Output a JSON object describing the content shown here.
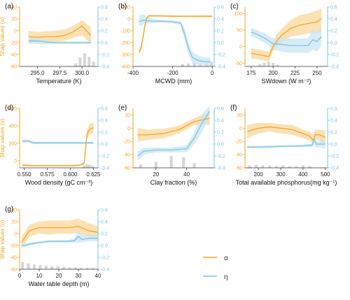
{
  "colors": {
    "alpha": "#F2A62A",
    "alpha_band": "#F9D79B",
    "eta": "#7DC4E3",
    "eta_band": "#C9E6F3",
    "hist": "#D6D6D6",
    "axis": "#333333"
  },
  "legend": {
    "alpha_label": "α",
    "eta_label": "η"
  },
  "chart_data": [
    {
      "panel": "(a)",
      "type": "line",
      "xlabel": "Temperature (K)",
      "ylabel_left": "Shap values (α)",
      "ylabel_right": "",
      "xlim": [
        293,
        301.8
      ],
      "xticks": [
        295.0,
        297.5,
        300.0
      ],
      "xtick_labels": [
        "295.0",
        "297.5",
        "300.0"
      ],
      "xtick_dec": 1,
      "ylim_left": [
        -60,
        40
      ],
      "yticks_left": [
        -60,
        -40,
        -20,
        0,
        20,
        40
      ],
      "ylim_right": [
        -0.4,
        0.6
      ],
      "yticks_right": [
        -0.4,
        -0.2,
        0.0,
        0.2,
        0.4,
        0.6
      ],
      "alpha": {
        "x": [
          294,
          295,
          296,
          297,
          298,
          299,
          300,
          301
        ],
        "y": [
          -10,
          -11,
          -10,
          -10,
          -8,
          -2,
          8,
          -8
        ],
        "lo": [
          -20,
          -20,
          -19,
          -19,
          -17,
          -12,
          -8,
          -22
        ],
        "hi": [
          0,
          -2,
          -1,
          0,
          2,
          8,
          18,
          6
        ]
      },
      "eta": {
        "x": [
          294,
          295,
          296,
          297,
          298,
          299,
          300,
          301
        ],
        "y": [
          0.03,
          0.03,
          0.01,
          0.0,
          0.0,
          0.0,
          0.0,
          0.0
        ],
        "lo": [
          -0.02,
          -0.02,
          -0.03,
          -0.02,
          -0.02,
          -0.02,
          -0.02,
          -0.02
        ],
        "hi": [
          0.08,
          0.08,
          0.05,
          0.02,
          0.02,
          0.02,
          0.02,
          0.02
        ]
      },
      "hist": {
        "x": [
          299.3,
          299.8,
          300.3,
          300.8,
          301.3
        ],
        "h": [
          0.05,
          0.15,
          0.22,
          0.16,
          0.08
        ]
      }
    },
    {
      "panel": "(b)",
      "type": "line",
      "xlabel": "MCWD (mm)",
      "ylabel_left": "",
      "ylabel_right": "",
      "xlim": [
        -400,
        10
      ],
      "xticks": [
        -400,
        -200,
        0
      ],
      "xtick_labels": [
        "-400",
        "-200",
        "0"
      ],
      "xtick_dec": 0,
      "ylim_left": [
        -400,
        100
      ],
      "yticks_left": [
        -400,
        -300,
        -200,
        -100,
        0,
        100
      ],
      "ylim_right": [
        -0.4,
        0.6
      ],
      "yticks_right": [
        -0.4,
        -0.2,
        0.0,
        0.2,
        0.4,
        0.6
      ],
      "alpha": {
        "x": [
          -370,
          -360,
          -350,
          -340,
          -330,
          -320,
          -300,
          -250,
          -200,
          -100,
          0
        ],
        "y": [
          -280,
          -250,
          -160,
          -60,
          10,
          25,
          25,
          25,
          22,
          22,
          22
        ],
        "lo": [
          -310,
          -270,
          -190,
          -90,
          0,
          15,
          18,
          18,
          15,
          15,
          12
        ],
        "hi": [
          -250,
          -220,
          -130,
          -30,
          20,
          35,
          32,
          32,
          30,
          30,
          32
        ]
      },
      "eta": {
        "x": [
          -370,
          -350,
          -330,
          -300,
          -250,
          -200,
          -160,
          -140,
          -120,
          -100,
          -70,
          -40,
          -10
        ],
        "y": [
          0.35,
          0.38,
          0.37,
          0.36,
          0.36,
          0.35,
          0.33,
          0.15,
          -0.1,
          -0.25,
          -0.3,
          -0.32,
          -0.32
        ],
        "lo": [
          0.28,
          0.3,
          0.32,
          0.33,
          0.34,
          0.33,
          0.3,
          0.05,
          -0.2,
          -0.35,
          -0.38,
          -0.38,
          -0.4
        ],
        "hi": [
          0.45,
          0.48,
          0.44,
          0.4,
          0.38,
          0.37,
          0.36,
          0.25,
          0.0,
          -0.15,
          -0.22,
          -0.25,
          -0.25
        ]
      },
      "hist": {
        "x": [
          -150,
          -120,
          -90,
          -60,
          -30,
          -5
        ],
        "h": [
          0.04,
          0.05,
          0.06,
          0.05,
          0.06,
          0.08
        ]
      }
    },
    {
      "panel": "(c)",
      "type": "line",
      "xlabel": "SWdown (W m⁻²)",
      "ylabel_left": "",
      "ylabel_right": "",
      "xlim": [
        168,
        262
      ],
      "xticks": [
        175,
        200,
        225,
        250
      ],
      "xtick_labels": [
        "175",
        "200",
        "225",
        "250"
      ],
      "xtick_dec": 0,
      "ylim_left": [
        -60,
        120
      ],
      "yticks_left": [
        -50,
        0,
        50,
        100
      ],
      "ylim_right": [
        -0.4,
        0.6
      ],
      "yticks_right": [
        -0.4,
        -0.2,
        0.0,
        0.2,
        0.4,
        0.6
      ],
      "alpha": {
        "x": [
          175,
          185,
          195,
          200,
          205,
          210,
          220,
          230,
          240,
          250,
          255
        ],
        "y": [
          -20,
          -25,
          -30,
          0,
          20,
          35,
          55,
          65,
          70,
          75,
          85
        ],
        "lo": [
          -35,
          -40,
          -45,
          -15,
          0,
          15,
          30,
          35,
          40,
          40,
          45
        ],
        "hi": [
          -5,
          -10,
          -15,
          15,
          40,
          55,
          80,
          95,
          100,
          110,
          115
        ]
      },
      "eta": {
        "x": [
          175,
          180,
          190,
          198,
          200,
          210,
          220,
          230,
          240,
          245,
          250,
          255
        ],
        "y": [
          0.18,
          0.15,
          0.08,
          0.0,
          -0.02,
          -0.03,
          -0.05,
          -0.05,
          -0.05,
          0.05,
          0.02,
          0.1
        ],
        "lo": [
          0.1,
          0.08,
          0.0,
          -0.08,
          -0.12,
          -0.15,
          -0.17,
          -0.17,
          -0.17,
          -0.12,
          -0.15,
          -0.05
        ],
        "hi": [
          0.25,
          0.22,
          0.16,
          0.08,
          0.08,
          0.08,
          0.07,
          0.07,
          0.07,
          0.22,
          0.18,
          0.28
        ]
      },
      "hist": {
        "x": [
          185,
          190,
          195,
          200,
          205
        ],
        "h": [
          0.04,
          0.06,
          0.08,
          0.06,
          0.03
        ]
      }
    },
    {
      "panel": "(d)",
      "type": "line",
      "xlabel": "Wood density (gC cm⁻³)",
      "ylabel_left": "Shap values (α)",
      "ylabel_right": "",
      "xlim": [
        0.545,
        0.63
      ],
      "xticks": [
        0.55,
        0.575,
        0.6,
        0.625
      ],
      "xtick_labels": [
        "0.550",
        "0.575",
        "0.600",
        "0.625"
      ],
      "xtick_dec": 3,
      "ylim_left": [
        -80,
        600
      ],
      "yticks_left": [
        0,
        200,
        400,
        600
      ],
      "ylim_right": [
        -0.4,
        0.6
      ],
      "yticks_right": [
        -0.4,
        -0.2,
        0.0,
        0.2,
        0.4,
        0.6
      ],
      "alpha": {
        "x": [
          0.548,
          0.56,
          0.58,
          0.6,
          0.61,
          0.615,
          0.618,
          0.621,
          0.625
        ],
        "y": [
          -50,
          -55,
          -55,
          -55,
          -50,
          -30,
          300,
          360,
          380
        ],
        "lo": [
          -65,
          -65,
          -65,
          -65,
          -60,
          -50,
          250,
          300,
          320
        ],
        "hi": [
          -35,
          -45,
          -45,
          -45,
          -40,
          -10,
          350,
          420,
          440
        ]
      },
      "eta": {
        "x": [
          0.548,
          0.555,
          0.56,
          0.58,
          0.6,
          0.61,
          0.62,
          0.625
        ],
        "y": [
          0.05,
          0.05,
          0.02,
          0.02,
          0.02,
          0.02,
          0.02,
          0.02
        ],
        "lo": [
          0.02,
          0.02,
          0.0,
          0.0,
          0.0,
          0.0,
          0.0,
          0.0
        ],
        "hi": [
          0.08,
          0.08,
          0.04,
          0.04,
          0.04,
          0.04,
          0.04,
          0.04
        ]
      },
      "hist": {
        "x": [
          0.615,
          0.618,
          0.621,
          0.624
        ],
        "h": [
          0.04,
          0.06,
          0.05,
          0.03
        ]
      }
    },
    {
      "panel": "(e)",
      "type": "line",
      "xlabel": "Clay fraction (%)",
      "ylabel_left": "",
      "ylabel_right": "",
      "xlim": [
        5,
        58
      ],
      "xticks": [
        20,
        40
      ],
      "xtick_labels": [
        "20",
        "40"
      ],
      "xtick_dec": 0,
      "ylim_left": [
        -60,
        30
      ],
      "yticks_left": [
        -60,
        -40,
        -20,
        0,
        20
      ],
      "ylim_right": [
        -0.4,
        0.6
      ],
      "yticks_right": [
        -0.4,
        -0.2,
        0.0,
        0.2,
        0.4,
        0.6
      ],
      "alpha": {
        "x": [
          8,
          15,
          25,
          35,
          45,
          55
        ],
        "y": [
          -10,
          -10,
          -8,
          -2,
          10,
          15
        ],
        "lo": [
          -20,
          -18,
          -15,
          -8,
          5,
          5
        ],
        "hi": [
          0,
          -2,
          -1,
          4,
          15,
          25
        ]
      },
      "eta": {
        "x": [
          8,
          12,
          20,
          30,
          40,
          45,
          50,
          55
        ],
        "y": [
          -0.2,
          -0.12,
          -0.1,
          -0.1,
          -0.08,
          0.1,
          0.35,
          0.55
        ],
        "lo": [
          -0.28,
          -0.18,
          -0.14,
          -0.14,
          -0.14,
          0.0,
          0.2,
          0.45
        ],
        "hi": [
          -0.12,
          -0.06,
          -0.06,
          -0.06,
          -0.02,
          0.2,
          0.5,
          0.65
        ]
      },
      "hist": {
        "x": [
          10,
          20,
          30,
          38,
          45
        ],
        "h": [
          0.06,
          0.1,
          0.2,
          0.18,
          0.08
        ]
      }
    },
    {
      "panel": "(f)",
      "type": "line",
      "xlabel": "Total available phosphorus(mg kg⁻¹)",
      "ylabel_left": "",
      "ylabel_right": "",
      "xlim": [
        140,
        510
      ],
      "xticks": [
        200,
        300,
        400,
        500
      ],
      "xtick_labels": [
        "200",
        "300",
        "400",
        "500"
      ],
      "xtick_dec": 0,
      "ylim_left": [
        -60,
        30
      ],
      "yticks_left": [
        -60,
        -40,
        -20,
        0,
        20
      ],
      "ylim_right": [
        -0.4,
        0.6
      ],
      "yticks_right": [
        -0.4,
        -0.2,
        0.0,
        0.2,
        0.4,
        0.6
      ],
      "alpha": {
        "x": [
          150,
          200,
          250,
          300,
          350,
          400,
          430,
          445,
          455,
          470,
          490,
          500
        ],
        "y": [
          -5,
          0,
          2,
          0,
          -2,
          -8,
          -12,
          -18,
          -10,
          -10,
          -12,
          -14
        ],
        "lo": [
          -15,
          -8,
          -5,
          -8,
          -10,
          -15,
          -18,
          -25,
          -18,
          -18,
          -22,
          -24
        ],
        "hi": [
          5,
          8,
          8,
          6,
          5,
          -2,
          -5,
          -10,
          -3,
          -2,
          -3,
          -4
        ]
      },
      "eta": {
        "x": [
          150,
          200,
          300,
          400,
          440,
          450,
          460,
          480,
          500
        ],
        "y": [
          -0.05,
          -0.05,
          -0.04,
          -0.03,
          -0.02,
          0.08,
          0.0,
          0.0,
          0.0
        ],
        "lo": [
          -0.07,
          -0.07,
          -0.06,
          -0.05,
          -0.05,
          0.0,
          -0.06,
          -0.06,
          -0.08
        ],
        "hi": [
          -0.03,
          -0.03,
          -0.02,
          -0.01,
          0.01,
          0.15,
          0.05,
          0.05,
          0.06
        ]
      },
      "hist": {
        "x": [
          160,
          190,
          220,
          250,
          280,
          310,
          340,
          370,
          400,
          430
        ],
        "h": [
          0.04,
          0.05,
          0.04,
          0.04,
          0.03,
          0.04,
          0.03,
          0.03,
          0.04,
          0.03
        ]
      }
    },
    {
      "panel": "(g)",
      "type": "line",
      "xlabel": "Water table depth (m)",
      "ylabel_left": "Shap values (α)",
      "ylabel_right": "",
      "xlim": [
        0,
        40
      ],
      "xticks": [
        0,
        10,
        20,
        30,
        40
      ],
      "xtick_labels": [
        "0",
        "10",
        "20",
        "30",
        "40"
      ],
      "xtick_dec": 0,
      "ylim_left": [
        -60,
        40
      ],
      "yticks_left": [
        -60,
        -40,
        -20,
        0,
        20,
        40
      ],
      "ylim_right": [
        -0.4,
        0.6
      ],
      "yticks_right": [
        -0.4,
        -0.2,
        0.0,
        0.2,
        0.4,
        0.6
      ],
      "alpha": {
        "x": [
          1,
          3,
          5,
          10,
          15,
          20,
          25,
          30,
          35,
          40
        ],
        "y": [
          -15,
          -5,
          5,
          10,
          10,
          10,
          10,
          12,
          5,
          2
        ],
        "lo": [
          -25,
          -15,
          -5,
          0,
          -2,
          0,
          0,
          0,
          -5,
          -8
        ],
        "hi": [
          -5,
          5,
          15,
          20,
          22,
          22,
          22,
          25,
          18,
          12
        ]
      },
      "eta": {
        "x": [
          1,
          3,
          5,
          10,
          15,
          20,
          25,
          28,
          30,
          32,
          35,
          40
        ],
        "y": [
          0.0,
          0.0,
          0.02,
          0.05,
          0.07,
          0.07,
          0.07,
          0.08,
          0.15,
          0.1,
          0.12,
          0.12
        ],
        "lo": [
          -0.04,
          -0.03,
          0.0,
          0.03,
          0.05,
          0.05,
          0.05,
          0.05,
          0.05,
          0.05,
          0.07,
          0.07
        ],
        "hi": [
          0.04,
          0.03,
          0.05,
          0.07,
          0.09,
          0.09,
          0.09,
          0.12,
          0.25,
          0.18,
          0.18,
          0.18
        ]
      },
      "hist": {
        "x": [
          1.5,
          4.5,
          7.5,
          10.5,
          13.5,
          16.5,
          19.5,
          22.5,
          25.5,
          28.5,
          31.5,
          34.5,
          37.5
        ],
        "h": [
          0.12,
          0.1,
          0.08,
          0.07,
          0.06,
          0.05,
          0.05,
          0.04,
          0.03,
          0.03,
          0.02,
          0.02,
          0.02
        ]
      }
    }
  ]
}
